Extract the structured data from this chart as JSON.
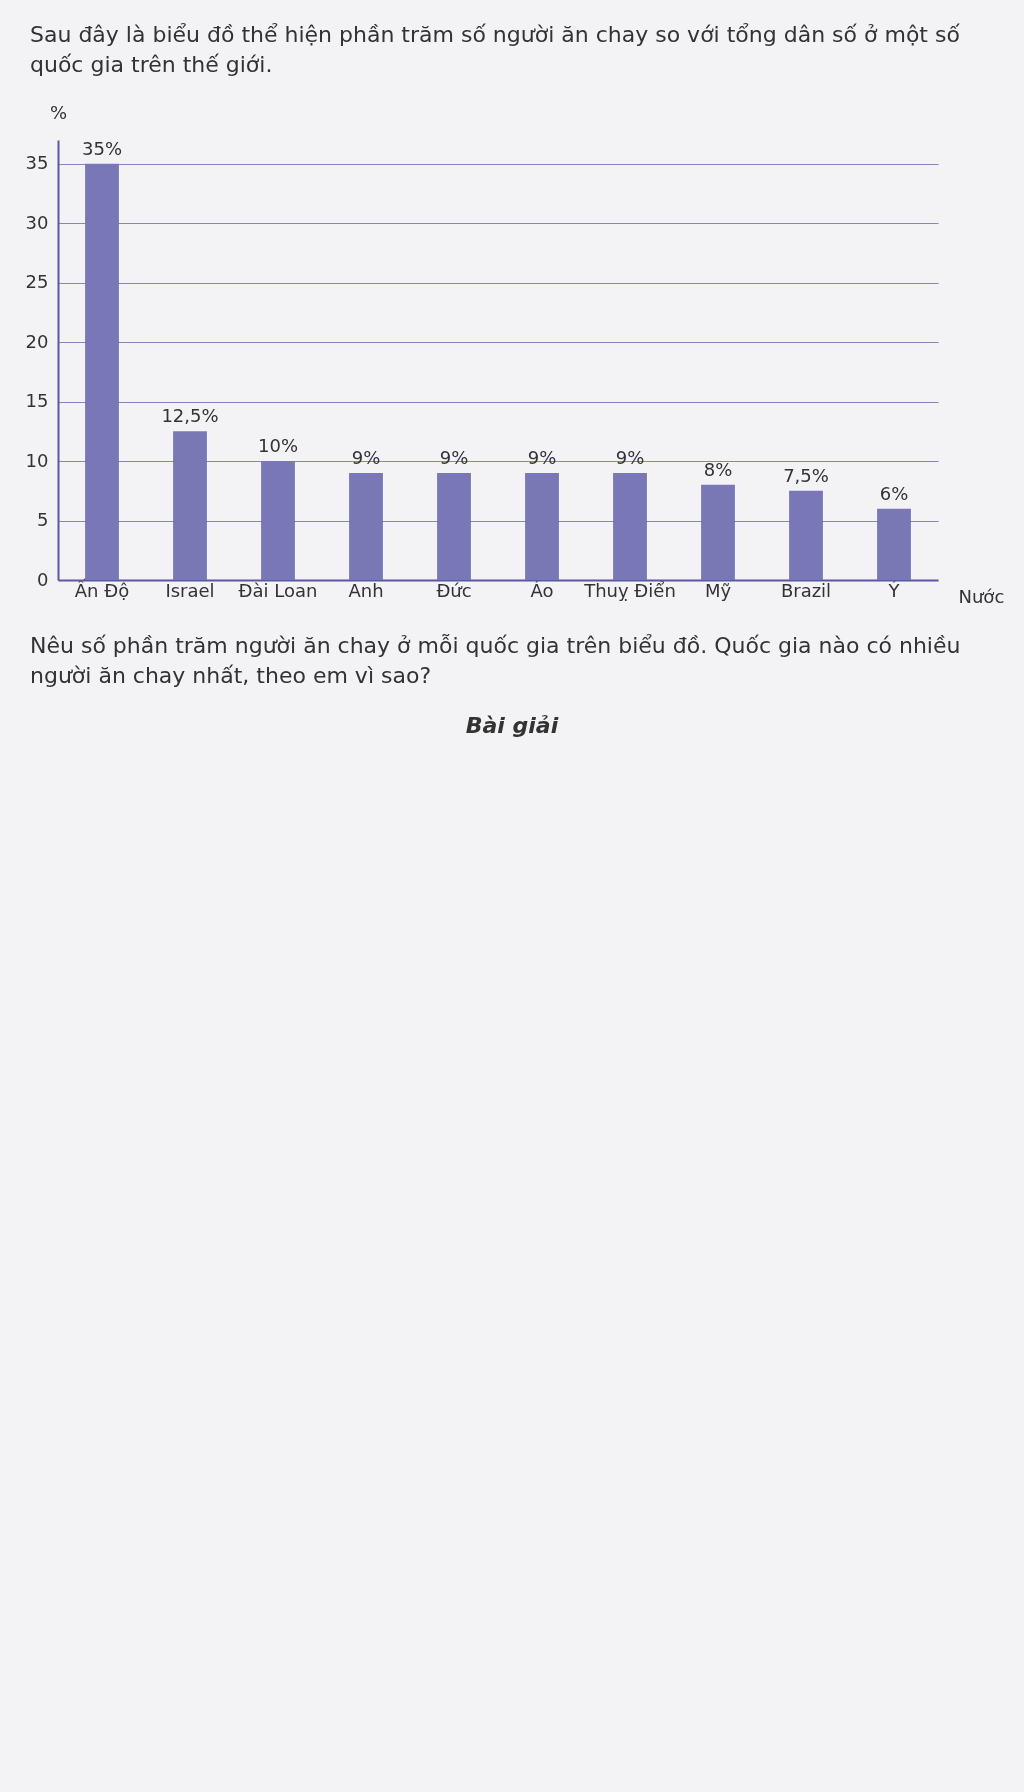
{
  "chart_data": {
    "type": "bar",
    "title": "Sau đây là biểu đồ thể hiện phần trăm số người ăn chay so với tổng dân số ở một số quốc gia trên thế giới.",
    "xlabel": "Nước",
    "ylabel": "%",
    "categories": [
      "Ấn Độ",
      "Israel",
      "Đài Loan",
      "Anh",
      "Đức",
      "Áo",
      "Thuỵ Điển",
      "Mỹ",
      "Brazil",
      "Ý"
    ],
    "values": [
      35,
      12.5,
      10,
      9,
      9,
      9,
      9,
      8,
      7.5,
      6
    ],
    "value_labels": [
      "35%",
      "12,5%",
      "10%",
      "9%",
      "9%",
      "9%",
      "9%",
      "8%",
      "7,5%",
      "6%"
    ],
    "color": "#7a77b6",
    "ylim": [
      0,
      37
    ],
    "yticks": [
      0,
      5,
      10,
      15,
      20,
      25,
      30,
      35
    ],
    "grid": "y",
    "annotations": [
      "Nêu số phần trăm người ăn chay ở mỗi quốc gia trên biểu đồ. Quốc gia nào có nhiều người ăn chay nhất, theo em vì sao?",
      "Bài giải"
    ]
  }
}
